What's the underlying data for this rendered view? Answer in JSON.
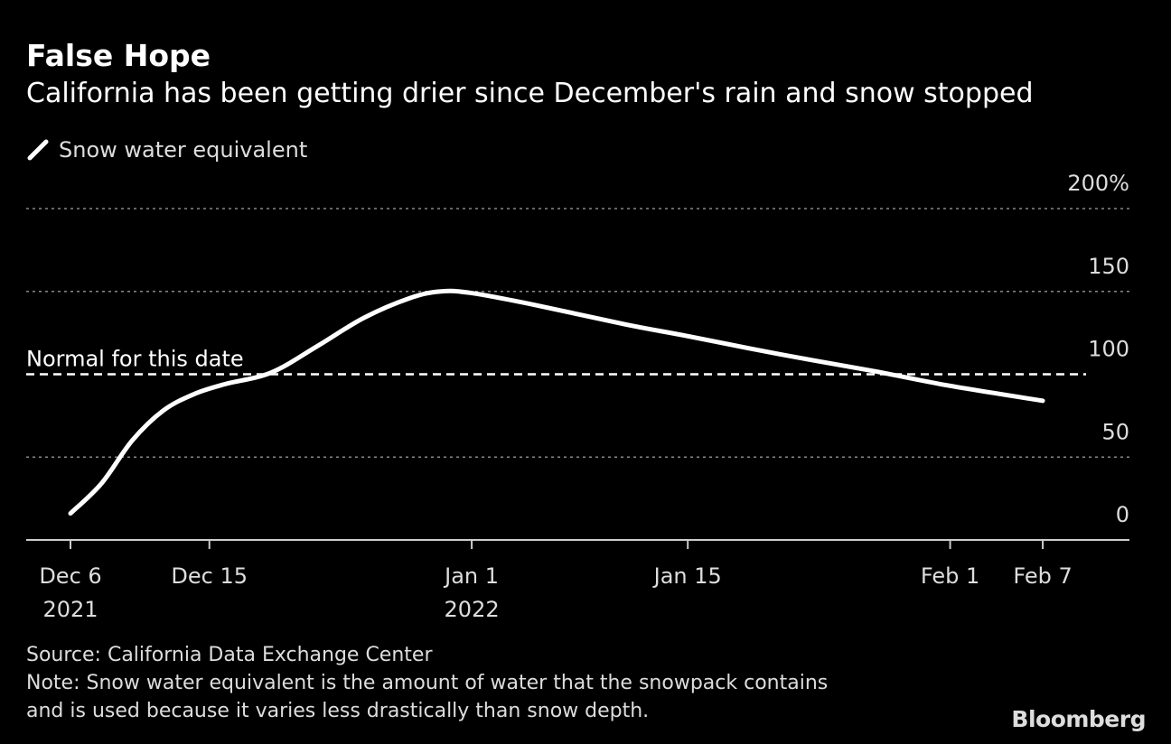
{
  "chart_data": {
    "type": "line",
    "title": "False Hope",
    "subtitle": "California has been getting drier since December's rain and snow stopped",
    "legend": [
      "Snow water equivalent"
    ],
    "legend_placement": "top-left",
    "series": [
      {
        "name": "Snow water equivalent",
        "color": "#ffffff",
        "x": [
          "2021-12-06",
          "2021-12-08",
          "2021-12-10",
          "2021-12-12",
          "2021-12-14",
          "2021-12-16",
          "2021-12-19",
          "2021-12-22",
          "2021-12-25",
          "2021-12-28",
          "2021-12-30",
          "2022-01-01",
          "2022-01-05",
          "2022-01-11",
          "2022-01-15",
          "2022-01-21",
          "2022-01-27",
          "2022-02-01",
          "2022-02-07"
        ],
        "values": [
          16,
          34,
          60,
          78,
          88,
          94,
          101,
          117,
          134,
          146,
          150,
          149,
          142,
          130,
          123,
          112,
          102,
          93,
          84
        ]
      }
    ],
    "reference_line": {
      "value": 100,
      "label": "Normal for this date"
    },
    "y_axis": {
      "range": [
        0,
        200
      ],
      "ticks": [
        0,
        50,
        100,
        150,
        200
      ],
      "tick_labels": [
        "0",
        "50",
        "100",
        "150",
        "200%"
      ],
      "position": "right",
      "grid": true
    },
    "x_axis": {
      "range": [
        "2021-12-03",
        "2022-02-12"
      ],
      "ticks": [
        {
          "date": "2021-12-06",
          "label": "Dec 6",
          "sublabel": "2021"
        },
        {
          "date": "2021-12-15",
          "label": "Dec 15",
          "sublabel": ""
        },
        {
          "date": "2022-01-01",
          "label": "Jan 1",
          "sublabel": "2022"
        },
        {
          "date": "2022-01-15",
          "label": "Jan 15",
          "sublabel": ""
        },
        {
          "date": "2022-02-01",
          "label": "Feb 1",
          "sublabel": ""
        },
        {
          "date": "2022-02-07",
          "label": "Feb 7",
          "sublabel": ""
        }
      ]
    }
  },
  "footer": {
    "source": "Source: California Data Exchange Center",
    "note_1": "Note: Snow water equivalent is the amount of water that the snowpack contains",
    "note_2": "and is used because it varies less drastically than snow depth."
  },
  "logo": "Bloomberg"
}
